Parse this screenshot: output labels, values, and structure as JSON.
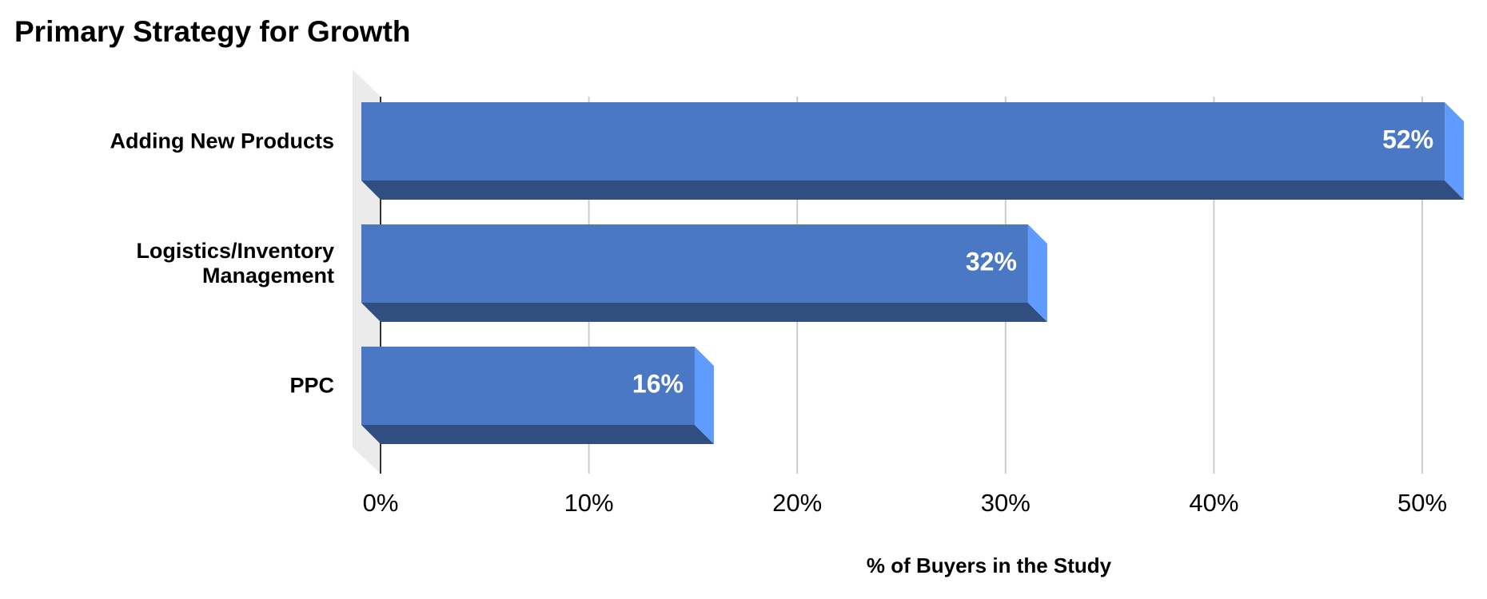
{
  "chart_data": {
    "type": "bar",
    "orientation": "horizontal",
    "three_d": true,
    "title": "Primary Strategy for Growth",
    "x_label": "% of Buyers in the Study",
    "categories": [
      "Adding New Products",
      "Logistics/Inventory Management",
      "PPC"
    ],
    "values": [
      52,
      32,
      16
    ],
    "value_labels": [
      "52%",
      "32%",
      "16%"
    ],
    "color": "#4a78c4",
    "xlim": [
      0,
      52
    ],
    "xticks": [
      {
        "value": 0,
        "label": "0%"
      },
      {
        "value": 10,
        "label": "10%"
      },
      {
        "value": 20,
        "label": "20%"
      },
      {
        "value": 30,
        "label": "30%"
      },
      {
        "value": 40,
        "label": "40%"
      },
      {
        "value": 50,
        "label": "50%"
      }
    ],
    "grid": true
  }
}
